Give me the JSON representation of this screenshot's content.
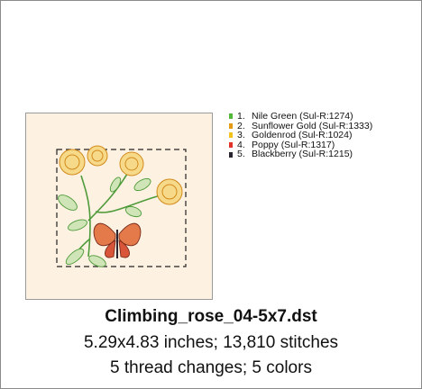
{
  "design": {
    "file_name": "Climbing_rose_04-5x7.dst",
    "size_and_stitches": "5.29x4.83 inches; 13,810 stitches",
    "changes_and_colors": "5 thread changes; 5 colors"
  },
  "threads": [
    {
      "number": "1.",
      "name": "Nile Green (Sul-R:1274)",
      "color": "#52b83a"
    },
    {
      "number": "2.",
      "name": "Sunflower Gold (Sul-R:1333)",
      "color": "#e49a12"
    },
    {
      "number": "3.",
      "name": "Goldenrod (Sul-R:1024)",
      "color": "#f4c21c"
    },
    {
      "number": "4.",
      "name": "Poppy (Sul-R:1317)",
      "color": "#e2332a"
    },
    {
      "number": "5.",
      "name": "Blackberry (Sul-R:1215)",
      "color": "#2a2430"
    }
  ]
}
